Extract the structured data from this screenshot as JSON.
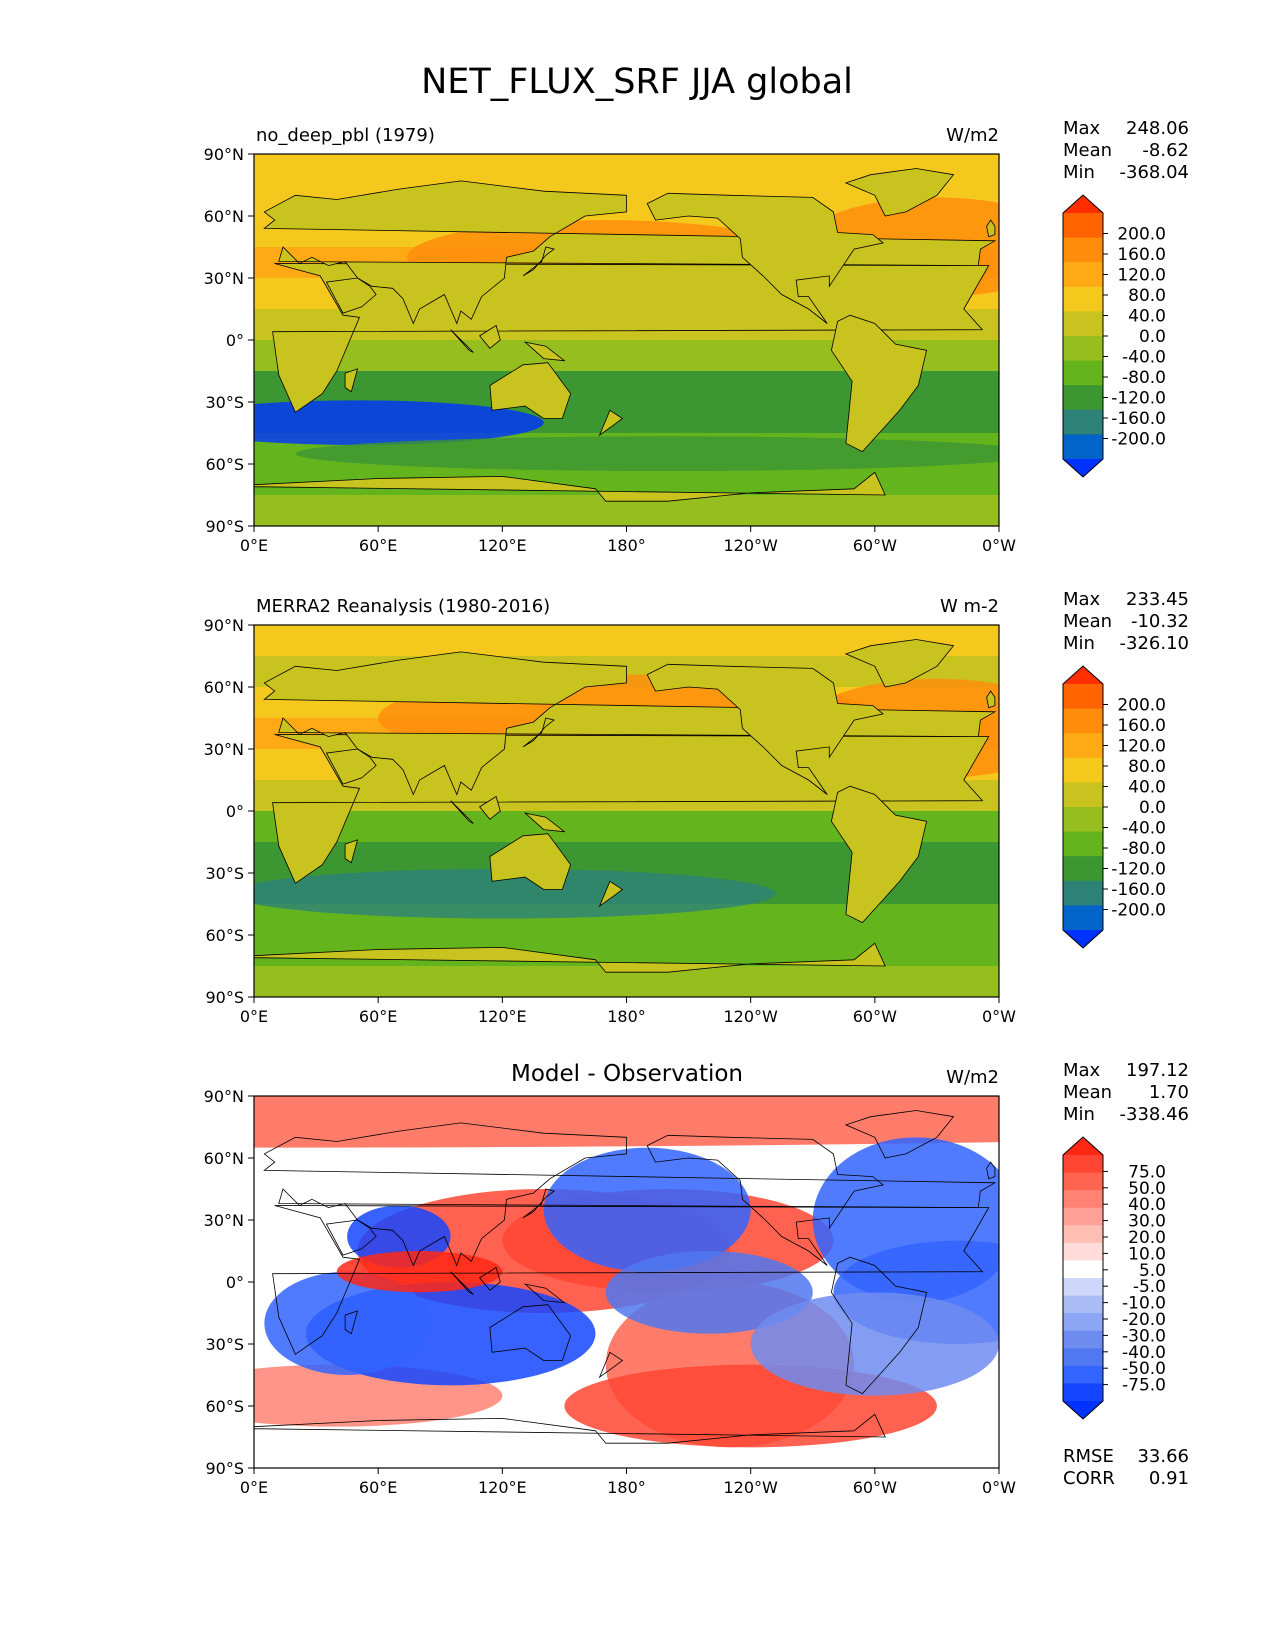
{
  "figure": {
    "title": "NET_FLUX_SRF JJA global"
  },
  "colors": {
    "continuous_scale": [
      "#0032ff",
      "#0064c8",
      "#2d8278",
      "#3c9632",
      "#64b41e",
      "#96be1e",
      "#c8c31e",
      "#f5c81e",
      "#ffaa14",
      "#ff8c0a",
      "#ff6400",
      "#ff2d00"
    ],
    "diff_scale": [
      "#0032ff",
      "#1446ff",
      "#3264ff",
      "#5078f0",
      "#6e8cf0",
      "#8ca5f5",
      "#aabef5",
      "#cdd7fa",
      "#ffffff",
      "#ffdcd7",
      "#ffbeb4",
      "#ffa096",
      "#ff8273",
      "#ff6450",
      "#ff4632",
      "#ff2814"
    ],
    "land_line": "#000000"
  },
  "chart_data": [
    {
      "type": "heatmap",
      "id": "panel1",
      "left_title": "no_deep_pbl (1979)",
      "center_title": "",
      "units": "W/m2",
      "stats": {
        "max_label": "Max",
        "max": "248.06",
        "mean_label": "Mean",
        "mean": "-8.62",
        "min_label": "Min",
        "min": "-368.04"
      },
      "xticks": [
        "0°E",
        "60°E",
        "120°E",
        "180°",
        "120°W",
        "60°W",
        "0°W"
      ],
      "yticks": [
        "90°N",
        "60°N",
        "30°N",
        "0°",
        "30°S",
        "60°S",
        "90°S"
      ],
      "xlim": [
        0,
        360
      ],
      "ylim": [
        -90,
        90
      ],
      "colorbar_labels": [
        "200.0",
        "160.0",
        "120.0",
        "80.0",
        "40.0",
        "0.0",
        "-40.0",
        "-80.0",
        "-120.0",
        "-160.0",
        "-200.0"
      ],
      "colorbar_levels": [
        -200,
        -160,
        -120,
        -80,
        -40,
        0,
        40,
        80,
        120,
        160,
        200
      ],
      "zonal_mean_profile": {
        "lat": [
          90,
          75,
          60,
          45,
          30,
          15,
          0,
          -15,
          -30,
          -45,
          -60,
          -75,
          -90
        ],
        "value": [
          60,
          60,
          20,
          100,
          80,
          50,
          20,
          -100,
          -140,
          -80,
          -60,
          -40,
          -40
        ]
      }
    },
    {
      "type": "heatmap",
      "id": "panel2",
      "left_title": "MERRA2 Reanalysis (1980-2016)",
      "center_title": "",
      "units": "W m-2",
      "stats": {
        "max_label": "Max",
        "max": "233.45",
        "mean_label": "Mean",
        "mean": "-10.32",
        "min_label": "Min",
        "min": "-326.10"
      },
      "xticks": [
        "0°E",
        "60°E",
        "120°E",
        "180°",
        "120°W",
        "60°W",
        "0°W"
      ],
      "yticks": [
        "90°N",
        "60°N",
        "30°N",
        "0°",
        "30°S",
        "60°S",
        "90°S"
      ],
      "xlim": [
        0,
        360
      ],
      "ylim": [
        -90,
        90
      ],
      "colorbar_labels": [
        "200.0",
        "160.0",
        "120.0",
        "80.0",
        "40.0",
        "0.0",
        "-40.0",
        "-80.0",
        "-120.0",
        "-160.0",
        "-200.0"
      ],
      "colorbar_levels": [
        -200,
        -160,
        -120,
        -80,
        -40,
        0,
        40,
        80,
        120,
        160,
        200
      ],
      "zonal_mean_profile": {
        "lat": [
          90,
          75,
          60,
          45,
          30,
          15,
          0,
          -15,
          -30,
          -45,
          -60,
          -75,
          -90
        ],
        "value": [
          60,
          40,
          20,
          130,
          90,
          40,
          0,
          -90,
          -110,
          -90,
          -60,
          -40,
          -40
        ]
      }
    },
    {
      "type": "heatmap",
      "id": "panel3",
      "left_title": "",
      "center_title": "Model - Observation",
      "units": "W/m2",
      "stats": {
        "max_label": "Max",
        "max": "197.12",
        "mean_label": "Mean",
        "mean": "1.70",
        "min_label": "Min",
        "min": "-338.46"
      },
      "xticks": [
        "0°E",
        "60°E",
        "120°E",
        "180°",
        "120°W",
        "60°W",
        "0°W"
      ],
      "yticks": [
        "90°N",
        "60°N",
        "30°N",
        "0°",
        "30°S",
        "60°S",
        "90°S"
      ],
      "xlim": [
        0,
        360
      ],
      "ylim": [
        -90,
        90
      ],
      "colorbar_labels": [
        "75.0",
        "50.0",
        "40.0",
        "30.0",
        "20.0",
        "10.0",
        "5.0",
        "-5.0",
        "-10.0",
        "-20.0",
        "-30.0",
        "-40.0",
        "-50.0",
        "-75.0"
      ],
      "colorbar_levels": [
        -75,
        -50,
        -40,
        -30,
        -20,
        -10,
        -5,
        5,
        10,
        20,
        30,
        40,
        50,
        75
      ],
      "rmse_label": "RMSE",
      "rmse": "33.66",
      "corr_label": "CORR",
      "corr": "0.91"
    }
  ]
}
